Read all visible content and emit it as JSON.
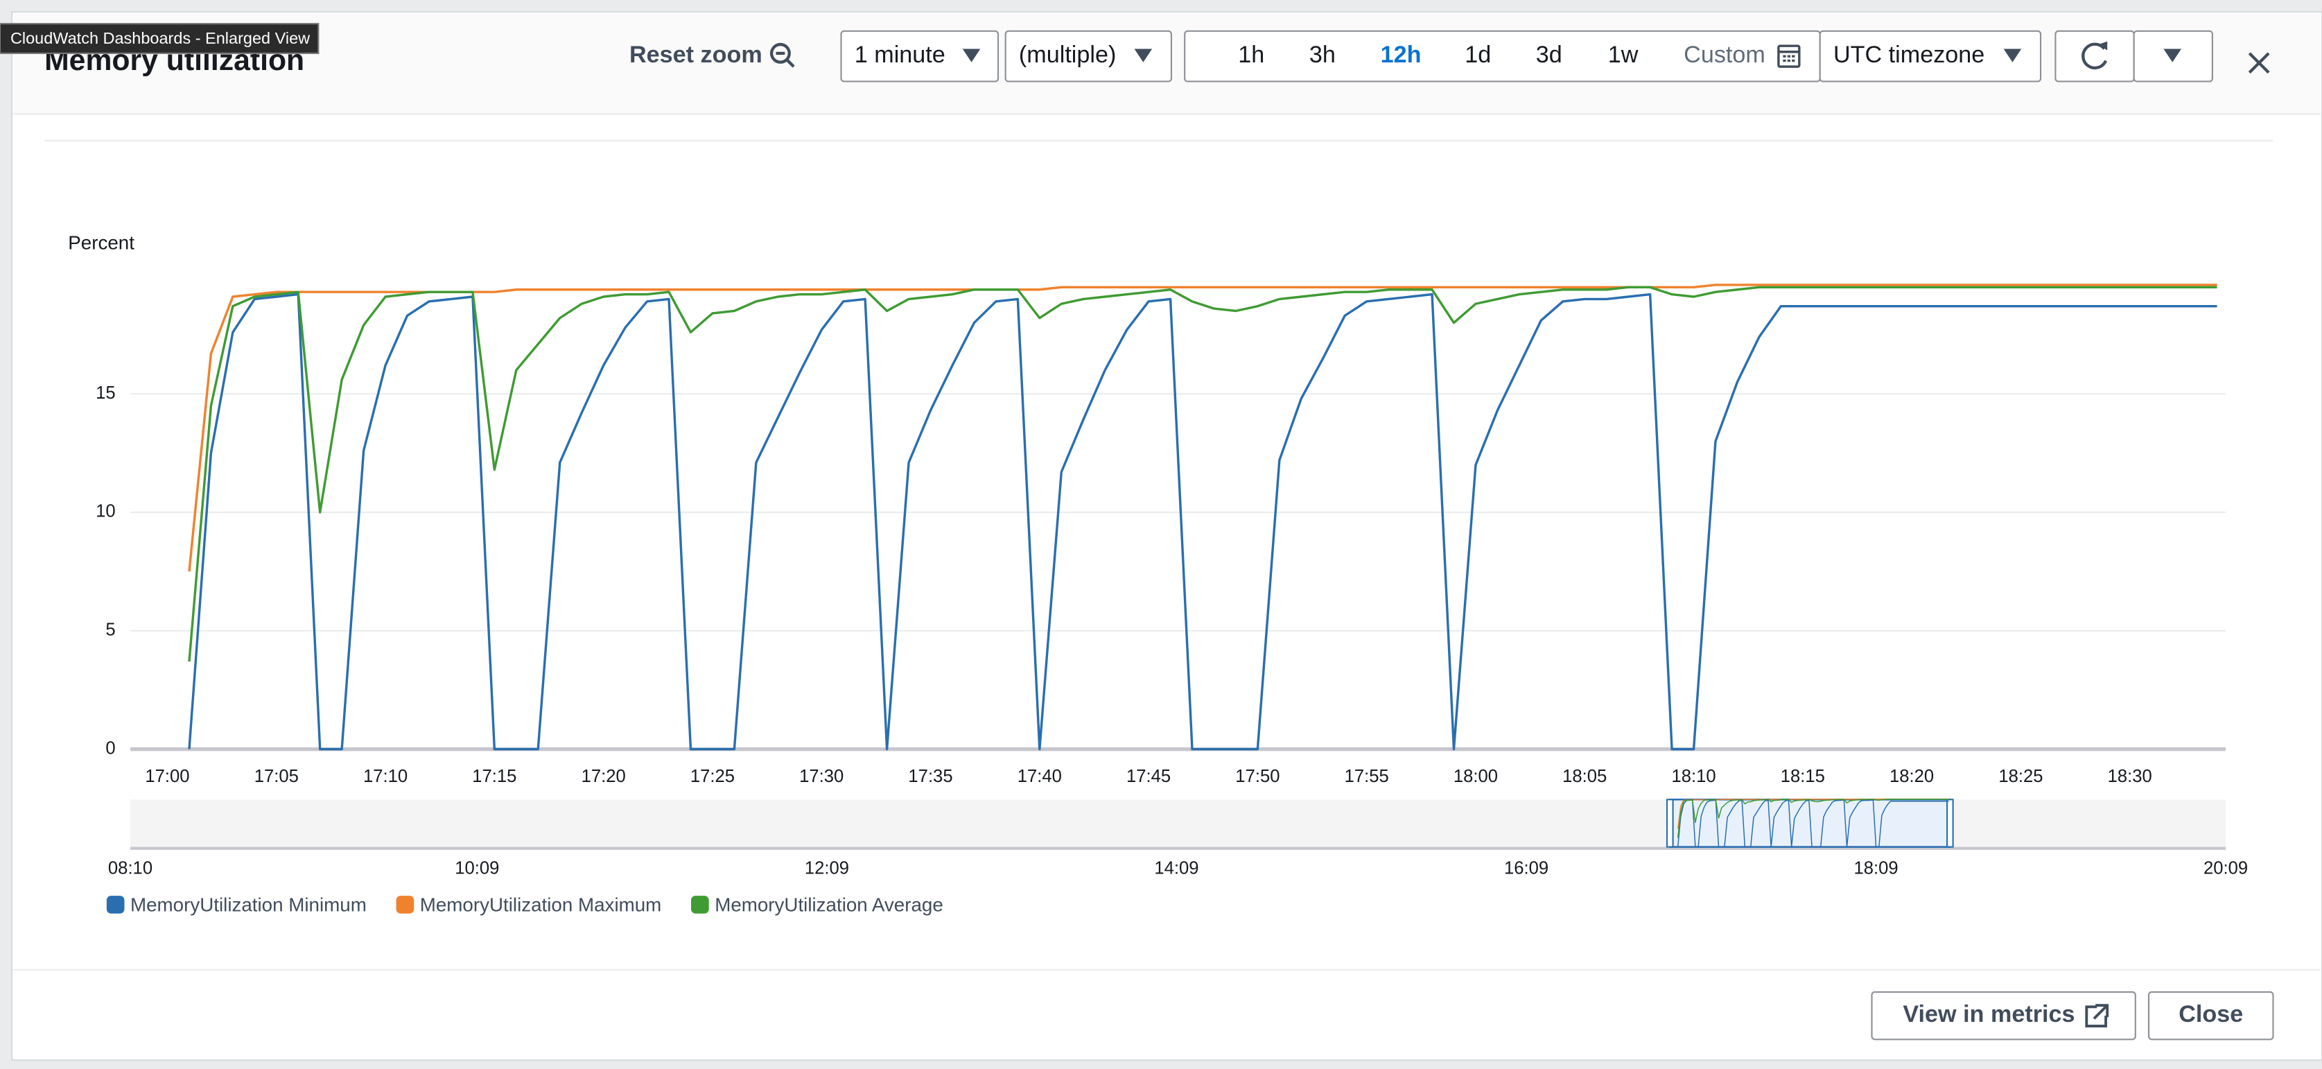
{
  "window": {
    "tooltip": "CloudWatch Dashboards - Enlarged View",
    "title": "Memory utilization"
  },
  "toolbar": {
    "reset_zoom": "Reset zoom",
    "period": "1 minute",
    "statistic": "(multiple)",
    "ranges": [
      "1h",
      "3h",
      "12h",
      "1d",
      "3d",
      "1w"
    ],
    "selected_range": 2,
    "custom": "Custom",
    "timezone": "UTC timezone"
  },
  "chart_data": {
    "type": "line",
    "y_label": "Percent",
    "x": [
      "17:01",
      "17:02",
      "17:03",
      "17:04",
      "17:05",
      "17:06",
      "17:07",
      "17:08",
      "17:09",
      "17:10",
      "17:11",
      "17:12",
      "17:13",
      "17:14",
      "17:15",
      "17:16",
      "17:17",
      "17:18",
      "17:19",
      "17:20",
      "17:21",
      "17:22",
      "17:23",
      "17:24",
      "17:25",
      "17:26",
      "17:27",
      "17:28",
      "17:29",
      "17:30",
      "17:31",
      "17:32",
      "17:33",
      "17:34",
      "17:35",
      "17:36",
      "17:37",
      "17:38",
      "17:39",
      "17:40",
      "17:41",
      "17:42",
      "17:43",
      "17:44",
      "17:45",
      "17:46",
      "17:47",
      "17:48",
      "17:49",
      "17:50",
      "17:51",
      "17:52",
      "17:53",
      "17:54",
      "17:55",
      "17:56",
      "17:57",
      "17:58",
      "17:59",
      "18:00",
      "18:01",
      "18:02",
      "18:03",
      "18:04",
      "18:05",
      "18:06",
      "18:07",
      "18:08",
      "18:09",
      "18:10",
      "18:11",
      "18:12",
      "18:13",
      "18:14",
      "18:15",
      "18:16",
      "18:17",
      "18:18",
      "18:19",
      "18:20",
      "18:21",
      "18:22",
      "18:23",
      "18:24",
      "18:25",
      "18:26",
      "18:27",
      "18:28",
      "18:29",
      "18:30",
      "18:31",
      "18:32",
      "18:33",
      "18:34"
    ],
    "series": [
      {
        "name": "MemoryUtilization Minimum",
        "color": "#2a6eb0",
        "values": [
          0,
          12.5,
          17.6,
          19.0,
          19.1,
          19.2,
          0,
          0,
          12.6,
          16.2,
          18.3,
          18.9,
          19.0,
          19.1,
          0,
          0,
          0,
          12.1,
          14.2,
          16.2,
          17.8,
          18.9,
          19.0,
          0,
          0,
          0,
          12.1,
          14.0,
          15.9,
          17.7,
          18.9,
          19.0,
          0,
          12.1,
          14.3,
          16.2,
          18.0,
          18.9,
          19.0,
          0,
          11.7,
          13.9,
          16.0,
          17.7,
          18.9,
          19.0,
          0,
          0,
          0,
          0,
          12.2,
          14.8,
          16.5,
          18.3,
          18.9,
          19.0,
          19.1,
          19.2,
          0,
          12.0,
          14.3,
          16.2,
          18.1,
          18.9,
          19.0,
          19.0,
          19.1,
          19.2,
          0,
          0,
          13.0,
          15.5,
          17.4,
          18.7,
          18.7,
          18.7,
          18.7,
          18.7,
          18.7,
          18.7,
          18.7,
          18.7,
          18.7,
          18.7,
          18.7,
          18.7,
          18.7,
          18.7,
          18.7,
          18.7,
          18.7,
          18.7,
          18.7,
          18.7
        ]
      },
      {
        "name": "MemoryUtilization Maximum",
        "color": "#f0822d",
        "values": [
          7.5,
          16.7,
          19.1,
          19.2,
          19.3,
          19.3,
          19.3,
          19.3,
          19.3,
          19.3,
          19.3,
          19.3,
          19.3,
          19.3,
          19.3,
          19.4,
          19.4,
          19.4,
          19.4,
          19.4,
          19.4,
          19.4,
          19.4,
          19.4,
          19.4,
          19.4,
          19.4,
          19.4,
          19.4,
          19.4,
          19.4,
          19.4,
          19.4,
          19.4,
          19.4,
          19.4,
          19.4,
          19.4,
          19.4,
          19.4,
          19.5,
          19.5,
          19.5,
          19.5,
          19.5,
          19.5,
          19.5,
          19.5,
          19.5,
          19.5,
          19.5,
          19.5,
          19.5,
          19.5,
          19.5,
          19.5,
          19.5,
          19.5,
          19.5,
          19.5,
          19.5,
          19.5,
          19.5,
          19.5,
          19.5,
          19.5,
          19.5,
          19.5,
          19.5,
          19.5,
          19.6,
          19.6,
          19.6,
          19.6,
          19.6,
          19.6,
          19.6,
          19.6,
          19.6,
          19.6,
          19.6,
          19.6,
          19.6,
          19.6,
          19.6,
          19.6,
          19.6,
          19.6,
          19.6,
          19.6,
          19.6,
          19.6,
          19.6,
          19.6
        ]
      },
      {
        "name": "MemoryUtilization Average",
        "color": "#3f9b33",
        "values": [
          3.7,
          14.5,
          18.7,
          19.1,
          19.2,
          19.3,
          10.0,
          15.6,
          17.9,
          19.1,
          19.2,
          19.3,
          19.3,
          19.3,
          11.8,
          16.0,
          17.1,
          18.2,
          18.8,
          19.1,
          19.2,
          19.2,
          19.3,
          17.6,
          18.4,
          18.5,
          18.9,
          19.1,
          19.2,
          19.2,
          19.3,
          19.4,
          18.5,
          19.0,
          19.1,
          19.2,
          19.4,
          19.4,
          19.4,
          18.2,
          18.8,
          19.0,
          19.1,
          19.2,
          19.3,
          19.4,
          18.9,
          18.6,
          18.5,
          18.7,
          19.0,
          19.1,
          19.2,
          19.3,
          19.3,
          19.4,
          19.4,
          19.4,
          18.0,
          18.8,
          19.0,
          19.2,
          19.3,
          19.4,
          19.4,
          19.4,
          19.5,
          19.5,
          19.2,
          19.1,
          19.3,
          19.4,
          19.5,
          19.5,
          19.5,
          19.5,
          19.5,
          19.5,
          19.5,
          19.5,
          19.5,
          19.5,
          19.5,
          19.5,
          19.5,
          19.5,
          19.5,
          19.5,
          19.5,
          19.5,
          19.5,
          19.5,
          19.5,
          19.5
        ]
      }
    ],
    "xlim": [
      "16:58:18",
      "18:34:24"
    ],
    "xticks": [
      "17:00",
      "17:05",
      "17:10",
      "17:15",
      "17:20",
      "17:25",
      "17:30",
      "17:35",
      "17:40",
      "17:45",
      "17:50",
      "17:55",
      "18:00",
      "18:05",
      "18:10",
      "18:15",
      "18:20",
      "18:25",
      "18:30"
    ],
    "ylim": [
      0,
      20
    ],
    "yticks": [
      0,
      5,
      10,
      15
    ],
    "grid": true
  },
  "overview": {
    "xlim": [
      "08:10",
      "20:09"
    ],
    "ticks": [
      "08:10",
      "10:09",
      "12:09",
      "14:09",
      "16:09",
      "18:09",
      "20:09"
    ]
  },
  "footer": {
    "view_in_metrics": "View in metrics",
    "close": "Close"
  }
}
